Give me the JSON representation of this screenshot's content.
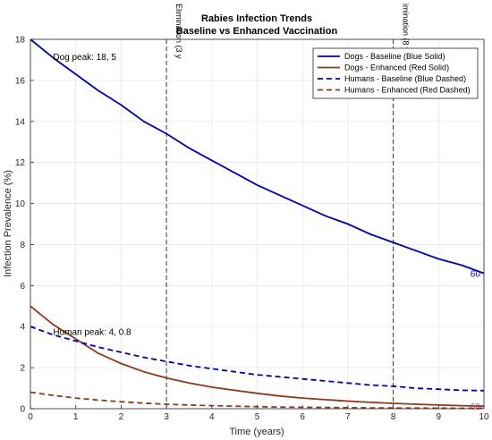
{
  "chart_data": {
    "type": "line",
    "title": "Rabies Infection Trends",
    "subtitle": "Baseline vs Enhanced Vaccination",
    "xlabel": "Time (years)",
    "ylabel": "Infection Prevalence (%)",
    "xlim": [
      0,
      10
    ],
    "ylim": [
      0,
      18
    ],
    "xticks": [
      0,
      1,
      2,
      3,
      4,
      5,
      6,
      7,
      8,
      9,
      10
    ],
    "yticks": [
      0,
      2,
      4,
      6,
      8,
      10,
      12,
      14,
      16,
      18
    ],
    "grid": true,
    "legend_position": "top-right",
    "x": [
      0,
      0.5,
      1,
      1.5,
      2,
      2.5,
      3,
      3.5,
      4,
      4.5,
      5,
      5.5,
      6,
      6.5,
      7,
      7.5,
      8,
      8.5,
      9,
      9.5,
      10
    ],
    "series": [
      {
        "name": "Dogs - Baseline (Blue Solid)",
        "color": "#0000b3",
        "style": "solid",
        "values": [
          18.0,
          17.1,
          16.3,
          15.5,
          14.8,
          14.0,
          13.4,
          12.7,
          12.1,
          11.5,
          10.9,
          10.4,
          9.9,
          9.4,
          9.0,
          8.5,
          8.1,
          7.7,
          7.3,
          7.0,
          6.6
        ]
      },
      {
        "name": "Dogs - Enhanced (Red Solid)",
        "color": "#8b3a1a",
        "style": "solid",
        "values": [
          5.0,
          4.1,
          3.4,
          2.7,
          2.2,
          1.8,
          1.5,
          1.25,
          1.05,
          0.9,
          0.75,
          0.62,
          0.52,
          0.44,
          0.37,
          0.31,
          0.26,
          0.22,
          0.18,
          0.15,
          0.12
        ]
      },
      {
        "name": "Humans - Baseline (Blue Dashed)",
        "color": "#0000b3",
        "style": "dashed",
        "values": [
          4.0,
          3.6,
          3.3,
          3.0,
          2.75,
          2.5,
          2.3,
          2.1,
          1.95,
          1.8,
          1.65,
          1.55,
          1.45,
          1.35,
          1.25,
          1.15,
          1.1,
          1.0,
          0.95,
          0.9,
          0.88
        ]
      },
      {
        "name": "Humans - Enhanced (Red Dashed)",
        "color": "#8b3a1a",
        "style": "dashed",
        "values": [
          0.8,
          0.65,
          0.52,
          0.42,
          0.34,
          0.27,
          0.22,
          0.18,
          0.15,
          0.12,
          0.1,
          0.08,
          0.07,
          0.06,
          0.05,
          0.04,
          0.035,
          0.03,
          0.025,
          0.02,
          0.02
        ]
      }
    ],
    "vertical_lines": [
      {
        "x": 3,
        "label": "Elimination (3 y"
      },
      {
        "x": 8,
        "label": "imination (8 y"
      }
    ],
    "annotations": [
      {
        "x": 0.5,
        "y": 17.0,
        "text": "Dog peak: 18, 5"
      },
      {
        "x": 0.5,
        "y": 3.6,
        "text": "Human peak: 4, 0.8"
      }
    ],
    "end_labels": [
      {
        "x": 9.7,
        "y": 6.6,
        "text": "60",
        "color": "#0000b3"
      },
      {
        "x": 9.7,
        "y": 0.12,
        "text": "60",
        "color": "#c83a8c"
      }
    ]
  }
}
